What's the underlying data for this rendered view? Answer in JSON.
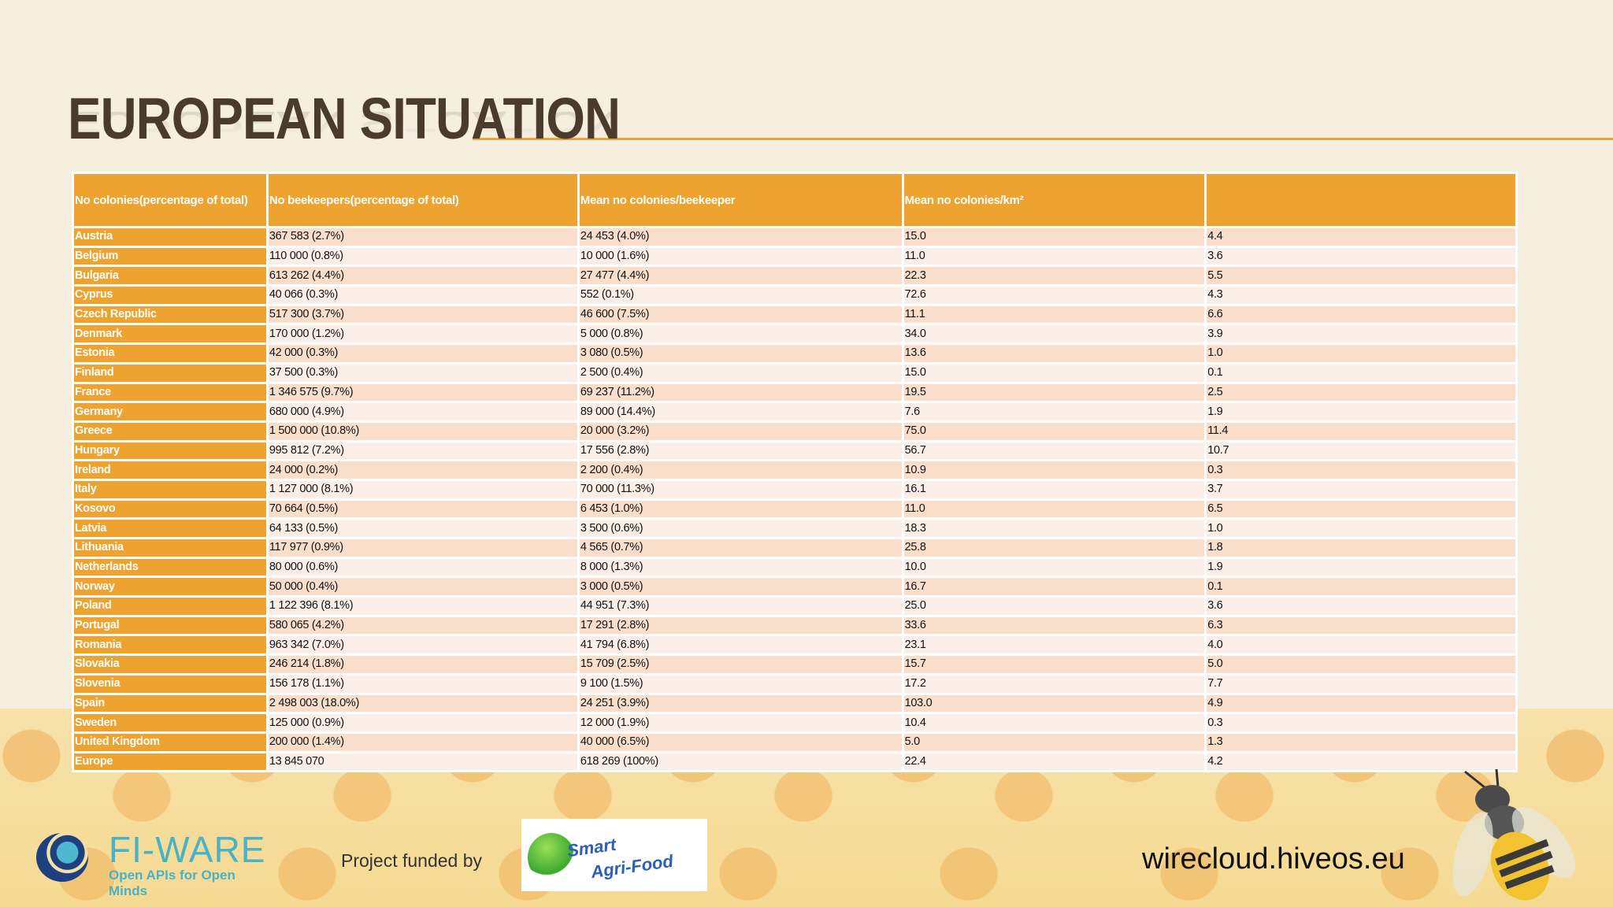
{
  "slide": {
    "title": "EUROPEAN SITUATION"
  },
  "table": {
    "headers": [
      "No colonies(percentage of total)",
      "No beekeepers(percentage of total)",
      "Mean no colonies/beekeeper",
      "Mean no colonies/km²",
      ""
    ],
    "rows": [
      {
        "country": "Austria",
        "colonies": "367 583 (2.7%)",
        "beekeepers": "24 453 (4.0%)",
        "mean_per_beekeeper": "15.0",
        "mean_per_km2": "4.4"
      },
      {
        "country": "Belgium",
        "colonies": "110 000 (0.8%)",
        "beekeepers": "10 000 (1.6%)",
        "mean_per_beekeeper": "11.0",
        "mean_per_km2": "3.6"
      },
      {
        "country": "Bulgaria",
        "colonies": "613 262 (4.4%)",
        "beekeepers": "27 477 (4.4%)",
        "mean_per_beekeeper": "22.3",
        "mean_per_km2": "5.5"
      },
      {
        "country": "Cyprus",
        "colonies": "40 066 (0.3%)",
        "beekeepers": "552 (0.1%)",
        "mean_per_beekeeper": "72.6",
        "mean_per_km2": "4.3"
      },
      {
        "country": "Czech Republic",
        "colonies": "517 300 (3.7%)",
        "beekeepers": "46 600 (7.5%)",
        "mean_per_beekeeper": "11.1",
        "mean_per_km2": "6.6"
      },
      {
        "country": "Denmark",
        "colonies": "170 000 (1.2%)",
        "beekeepers": "5 000 (0.8%)",
        "mean_per_beekeeper": "34.0",
        "mean_per_km2": "3.9"
      },
      {
        "country": "Estonia",
        "colonies": "42 000 (0.3%)",
        "beekeepers": "3 080 (0.5%)",
        "mean_per_beekeeper": "13.6",
        "mean_per_km2": "1.0"
      },
      {
        "country": "Finland",
        "colonies": "37 500 (0.3%)",
        "beekeepers": "2 500 (0.4%)",
        "mean_per_beekeeper": "15.0",
        "mean_per_km2": "0.1"
      },
      {
        "country": "France",
        "colonies": "1 346 575 (9.7%)",
        "beekeepers": "69 237 (11.2%)",
        "mean_per_beekeeper": "19.5",
        "mean_per_km2": "2.5"
      },
      {
        "country": "Germany",
        "colonies": "680 000 (4.9%)",
        "beekeepers": "89 000 (14.4%)",
        "mean_per_beekeeper": "7.6",
        "mean_per_km2": "1.9"
      },
      {
        "country": "Greece",
        "colonies": "1 500 000 (10.8%)",
        "beekeepers": "20 000 (3.2%)",
        "mean_per_beekeeper": "75.0",
        "mean_per_km2": "11.4"
      },
      {
        "country": "Hungary",
        "colonies": "995 812 (7.2%)",
        "beekeepers": "17 556 (2.8%)",
        "mean_per_beekeeper": "56.7",
        "mean_per_km2": "10.7"
      },
      {
        "country": "Ireland",
        "colonies": "24 000 (0.2%)",
        "beekeepers": "2 200 (0.4%)",
        "mean_per_beekeeper": "10.9",
        "mean_per_km2": "0.3"
      },
      {
        "country": "Italy",
        "colonies": "1 127 000 (8.1%)",
        "beekeepers": "70 000 (11.3%)",
        "mean_per_beekeeper": "16.1",
        "mean_per_km2": "3.7"
      },
      {
        "country": "Kosovo",
        "colonies": "70 664 (0.5%)",
        "beekeepers": "6 453 (1.0%)",
        "mean_per_beekeeper": "11.0",
        "mean_per_km2": "6.5"
      },
      {
        "country": "Latvia",
        "colonies": "64 133 (0.5%)",
        "beekeepers": "3 500 (0.6%)",
        "mean_per_beekeeper": "18.3",
        "mean_per_km2": "1.0"
      },
      {
        "country": "Lithuania",
        "colonies": "117 977 (0.9%)",
        "beekeepers": "4 565 (0.7%)",
        "mean_per_beekeeper": "25.8",
        "mean_per_km2": "1.8"
      },
      {
        "country": "Netherlands",
        "colonies": "80 000 (0.6%)",
        "beekeepers": "8 000 (1.3%)",
        "mean_per_beekeeper": "10.0",
        "mean_per_km2": "1.9"
      },
      {
        "country": "Norway",
        "colonies": "50 000 (0.4%)",
        "beekeepers": "3 000 (0.5%)",
        "mean_per_beekeeper": "16.7",
        "mean_per_km2": "0.1"
      },
      {
        "country": "Poland",
        "colonies": "1 122 396 (8.1%)",
        "beekeepers": "44 951 (7.3%)",
        "mean_per_beekeeper": "25.0",
        "mean_per_km2": "3.6"
      },
      {
        "country": "Portugal",
        "colonies": "580 065 (4.2%)",
        "beekeepers": "17 291 (2.8%)",
        "mean_per_beekeeper": "33.6",
        "mean_per_km2": "6.3"
      },
      {
        "country": "Romania",
        "colonies": "963 342 (7.0%)",
        "beekeepers": "41 794 (6.8%)",
        "mean_per_beekeeper": "23.1",
        "mean_per_km2": "4.0"
      },
      {
        "country": "Slovakia",
        "colonies": "246 214 (1.8%)",
        "beekeepers": "15 709 (2.5%)",
        "mean_per_beekeeper": "15.7",
        "mean_per_km2": "5.0"
      },
      {
        "country": "Slovenia",
        "colonies": "156 178 (1.1%)",
        "beekeepers": "9 100 (1.5%)",
        "mean_per_beekeeper": "17.2",
        "mean_per_km2": "7.7"
      },
      {
        "country": "Spain",
        "colonies": "2 498 003 (18.0%)",
        "beekeepers": "24 251 (3.9%)",
        "mean_per_beekeeper": "103.0",
        "mean_per_km2": "4.9"
      },
      {
        "country": "Sweden",
        "colonies": "125 000 (0.9%)",
        "beekeepers": "12 000 (1.9%)",
        "mean_per_beekeeper": "10.4",
        "mean_per_km2": "0.3"
      },
      {
        "country": "United Kingdom",
        "colonies": "200 000 (1.4%)",
        "beekeepers": "40 000 (6.5%)",
        "mean_per_beekeeper": "5.0",
        "mean_per_km2": "1.3"
      },
      {
        "country": "Europe",
        "colonies": "13 845 070",
        "beekeepers": "618 269 (100%)",
        "mean_per_beekeeper": "22.4",
        "mean_per_km2": "4.2"
      }
    ]
  },
  "footer": {
    "fiware_name": "FI-WARE",
    "fiware_tagline": "Open APIs for Open Minds",
    "funded_by": "Project funded by",
    "saf_line1": "Smart",
    "saf_line2": "Agri-Food",
    "website": "wirecloud.hiveos.eu"
  },
  "colors": {
    "background": "#f6efe0",
    "accent_orange": "#eea22f",
    "title_brown": "#4a3b2c",
    "row_odd": "#f8decb",
    "row_even": "#fbeee6"
  }
}
